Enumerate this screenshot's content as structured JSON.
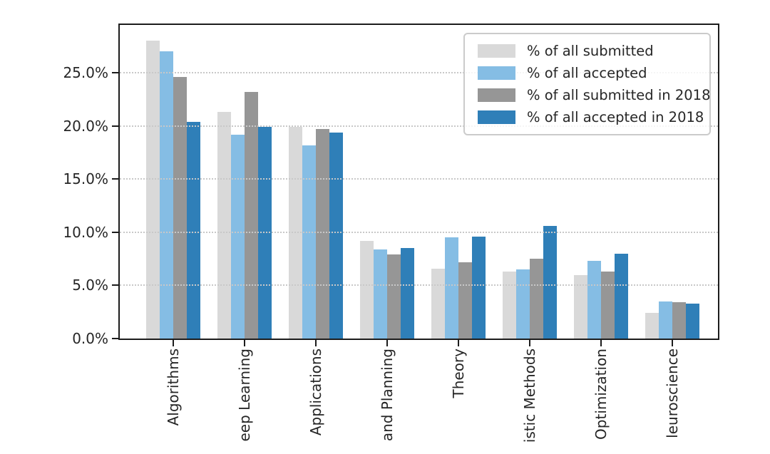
{
  "chart_data": {
    "type": "bar",
    "title": "",
    "xlabel": "",
    "ylabel": "",
    "categories": [
      "Algorithms",
      "eep Learning",
      "Applications",
      "and Planning",
      "Theory",
      "istic Methods",
      "Optimization",
      "leuroscience"
    ],
    "series": [
      {
        "name": "% of all submitted",
        "color": "#d9d9d9",
        "values": [
          28.0,
          21.3,
          19.9,
          9.2,
          6.6,
          6.3,
          6.0,
          2.4
        ]
      },
      {
        "name": "% of all accepted",
        "color": "#85bde4",
        "values": [
          27.0,
          19.2,
          18.2,
          8.4,
          9.5,
          6.5,
          7.3,
          3.5
        ]
      },
      {
        "name": "% of all submitted in 2018",
        "color": "#969696",
        "values": [
          24.6,
          23.2,
          19.7,
          7.9,
          7.2,
          7.5,
          6.3,
          3.4
        ]
      },
      {
        "name": "% of all accepted in 2018",
        "color": "#2f7fb8",
        "values": [
          20.4,
          19.9,
          19.4,
          8.5,
          9.6,
          10.6,
          8.0,
          3.3
        ]
      }
    ],
    "y_ticks": [
      {
        "label": "0.0%",
        "value": 0
      },
      {
        "label": "5.0%",
        "value": 5
      },
      {
        "label": "10.0%",
        "value": 10
      },
      {
        "label": "15.0%",
        "value": 15
      },
      {
        "label": "20.0%",
        "value": 20
      },
      {
        "label": "25.0%",
        "value": 25
      }
    ],
    "ylim": [
      0,
      29.5
    ],
    "grid": "dotted-horizontal",
    "legend_position": "upper-right"
  },
  "colors": {
    "background": "#ffffff",
    "spine": "#1c1c1c",
    "gridline": "#c8c8c8",
    "text": "#262626",
    "legend_border": "#cbcbcb"
  }
}
